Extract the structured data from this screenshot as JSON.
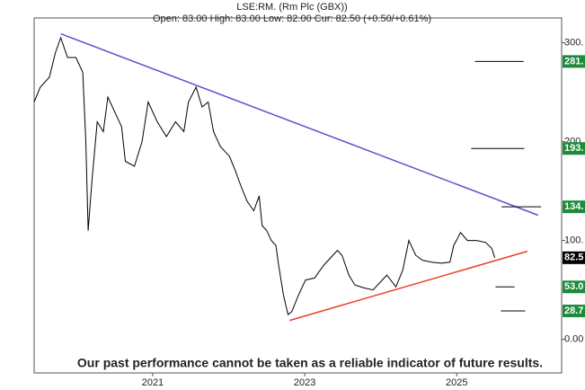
{
  "chart_data": {
    "type": "line",
    "title": "LSE:RM. (Rm Plc (GBX))",
    "subtitle": "Open: 83.00 High: 83.00 Low: 82.00 Cur: 82.50 (+0.50/+0.61%)",
    "annotation": "Our past performance cannot be taken as a reliable indicator of future results.",
    "xlim": [
      2019.44,
      2026.38
    ],
    "xticks": [
      2021,
      2023,
      2025
    ],
    "ylim": [
      -34,
      325
    ],
    "yticks": [
      {
        "value": 300,
        "label": "300."
      },
      {
        "value": 200,
        "label": "200."
      },
      {
        "value": 100,
        "label": "100."
      },
      {
        "value": 0,
        "label": "0.00"
      }
    ],
    "series": [
      {
        "color": "#000000",
        "x": [
          2019.44,
          2019.52,
          2019.64,
          2019.72,
          2019.79,
          2019.88,
          2019.99,
          2020.08,
          2020.12,
          2020.15,
          2020.2,
          2020.27,
          2020.35,
          2020.41,
          2020.5,
          2020.59,
          2020.64,
          2020.76,
          2020.86,
          2020.94,
          2021.06,
          2021.18,
          2021.3,
          2021.41,
          2021.47,
          2021.57,
          2021.65,
          2021.73,
          2021.8,
          2021.89,
          2022.01,
          2022.09,
          2022.16,
          2022.24,
          2022.33,
          2022.4,
          2022.44,
          2022.5,
          2022.56,
          2022.62,
          2022.66,
          2022.72,
          2022.78,
          2022.83,
          2022.92,
          2023.01,
          2023.13,
          2023.25,
          2023.37,
          2023.43,
          2023.49,
          2023.58,
          2023.66,
          2023.78,
          2023.9,
          2024.02,
          2024.08,
          2024.2,
          2024.29,
          2024.37,
          2024.46,
          2024.55,
          2024.67,
          2024.79,
          2024.91,
          2024.96,
          2025.05,
          2025.14,
          2025.26,
          2025.38,
          2025.46,
          2025.5
        ],
        "values": [
          240,
          255,
          265,
          290,
          305,
          285,
          285,
          270,
          200,
          110,
          160,
          220,
          210,
          245,
          230,
          215,
          180,
          175,
          200,
          240,
          220,
          205,
          220,
          210,
          240,
          255,
          235,
          240,
          210,
          195,
          185,
          170,
          155,
          140,
          130,
          145,
          115,
          110,
          100,
          95,
          73,
          45,
          25,
          28,
          45,
          60,
          62,
          75,
          85,
          90,
          85,
          65,
          55,
          52,
          50,
          60,
          65,
          53,
          70,
          100,
          85,
          80,
          78,
          77,
          78,
          95,
          108,
          100,
          100,
          98,
          92,
          82.5
        ]
      }
    ],
    "trendlines": [
      {
        "color": "#5555cc",
        "x": [
          2019.79,
          2026.07
        ],
        "values": [
          309,
          125.5
        ]
      },
      {
        "color": "#e8402a",
        "x": [
          2022.8,
          2025.93
        ],
        "values": [
          19.1,
          89.1
        ]
      }
    ],
    "levels": [
      {
        "value": 281,
        "label": "281.",
        "color": "#1e8a3c",
        "x": [
          2025.24,
          2025.88
        ]
      },
      {
        "value": 193,
        "label": "193.",
        "color": "#1e8a3c",
        "x": [
          2025.19,
          2025.89
        ]
      },
      {
        "value": 134,
        "label": "134.",
        "color": "#1e8a3c",
        "x": [
          2025.59,
          2026.11
        ]
      },
      {
        "value": 82.5,
        "label": "82.5",
        "color": "#000000"
      },
      {
        "value": 53,
        "label": "53.0",
        "color": "#1e8a3c",
        "x": [
          2025.51,
          2025.76
        ]
      },
      {
        "value": 28.7,
        "label": "28.7",
        "color": "#1e8a3c",
        "x": [
          2025.58,
          2025.9
        ]
      }
    ]
  }
}
